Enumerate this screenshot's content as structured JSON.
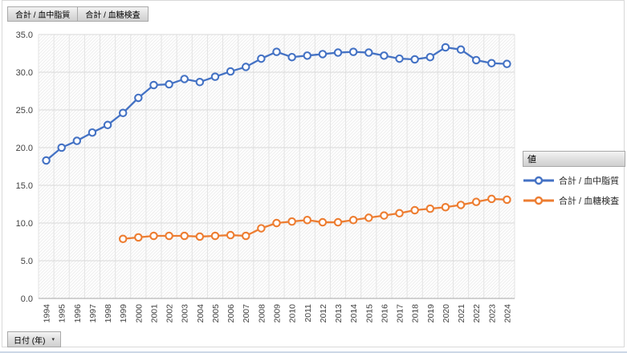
{
  "pivot_buttons": [
    {
      "label": "合計 / 血中脂質"
    },
    {
      "label": "合計 / 血糖検査"
    }
  ],
  "filter_button": {
    "label": "日付 (年)",
    "icon": "dropdown-arrow"
  },
  "legend": {
    "header": "値",
    "items": [
      {
        "label": "合計 / 血中脂質",
        "color": "#4472C4"
      },
      {
        "label": "合計 / 血糖検査",
        "color": "#ED7D31"
      }
    ]
  },
  "colors": {
    "gridline": "#d9d9d9",
    "axis_line": "#a6a6a6",
    "tick_text": "#404040",
    "plot_hatch": "rgba(120,120,120,0.13)"
  },
  "chart_data": {
    "type": "line",
    "x": [
      "1994",
      "1995",
      "1996",
      "1997",
      "1998",
      "1999",
      "2000",
      "2001",
      "2002",
      "2003",
      "2004",
      "2005",
      "2006",
      "2007",
      "2008",
      "2009",
      "2010",
      "2011",
      "2012",
      "2013",
      "2014",
      "2015",
      "2016",
      "2017",
      "2018",
      "2019",
      "2020",
      "2021",
      "2022",
      "2023",
      "2024"
    ],
    "series": [
      {
        "name": "合計 / 血中脂質",
        "color": "#4472C4",
        "values": [
          18.3,
          20.0,
          20.9,
          22.0,
          23.0,
          24.6,
          26.6,
          28.3,
          28.4,
          29.1,
          28.7,
          29.4,
          30.1,
          30.7,
          31.8,
          32.7,
          32.0,
          32.2,
          32.4,
          32.6,
          32.7,
          32.6,
          32.2,
          31.8,
          31.7,
          32.0,
          33.3,
          33.0,
          31.6,
          31.2,
          31.1
        ]
      },
      {
        "name": "合計 / 血糖検査",
        "color": "#ED7D31",
        "values": [
          null,
          null,
          null,
          null,
          null,
          7.9,
          8.1,
          8.3,
          8.3,
          8.3,
          8.2,
          8.3,
          8.4,
          8.3,
          9.3,
          10.0,
          10.2,
          10.4,
          10.1,
          10.1,
          10.4,
          10.7,
          11.0,
          11.3,
          11.7,
          11.9,
          12.1,
          12.4,
          12.8,
          13.2,
          13.1
        ]
      }
    ],
    "ylim": [
      0,
      35
    ],
    "y_ticks": [
      "0.0",
      "5.0",
      "10.0",
      "15.0",
      "20.0",
      "25.0",
      "30.0",
      "35.0"
    ],
    "xlabel": "日付 (年)",
    "ylabel": "値",
    "grid": true,
    "legend_position": "right"
  }
}
